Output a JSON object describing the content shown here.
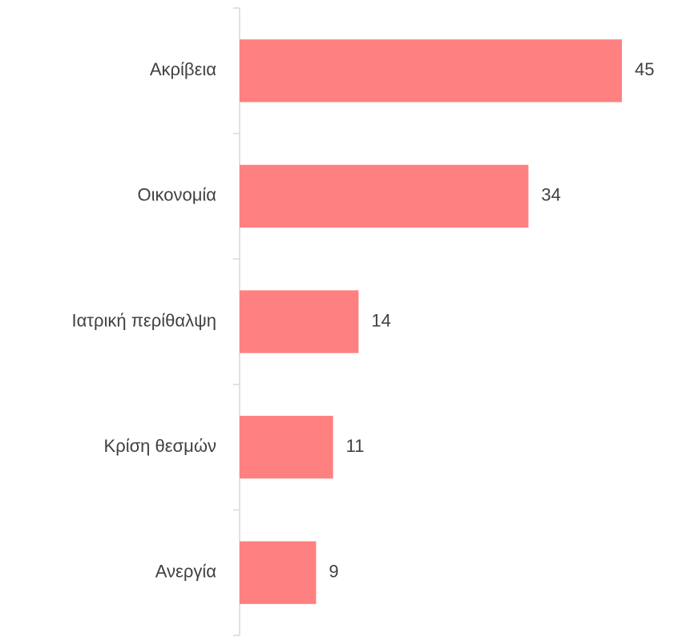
{
  "chart_data": {
    "type": "bar",
    "orientation": "horizontal",
    "categories": [
      "Ακρίβεια",
      "Οικονομία",
      "Ιατρική περίθαλψη",
      "Κρίση θεσμών",
      "Ανεργία"
    ],
    "values": [
      45,
      34,
      14,
      11,
      9
    ],
    "color": "#ff8080"
  }
}
